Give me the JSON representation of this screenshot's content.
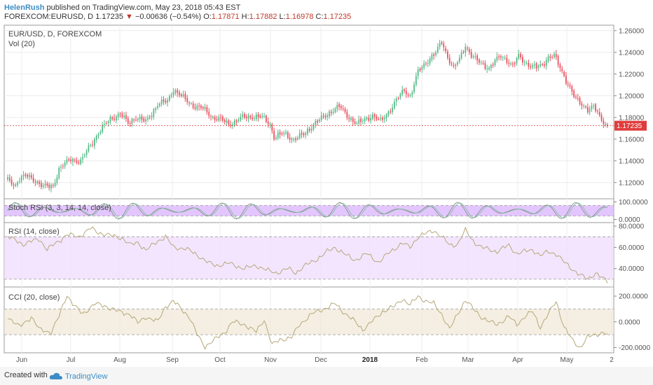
{
  "header": {
    "user": "HelenRush",
    "published_text": "published on TradingView.com, May 23, 2018 05:43 EST",
    "symbol": "FOREXCOM:EURUSD, D",
    "last": "1.17235",
    "change": "−0.00636 (−0.54%)",
    "open_label": "O:",
    "open": "1.17871",
    "high_label": "H:",
    "high": "1.17882",
    "low_label": "L:",
    "low": "1.16978",
    "close_label": "C:",
    "close": "1.17235"
  },
  "legend": {
    "main": "EUR/USD, D, FOREXCOM",
    "vol": "Vol (20)"
  },
  "colors": {
    "up": "#53b987",
    "down": "#eb4d5c",
    "price_line": "#e03c3c",
    "stoch_fill": "#d9b3ff",
    "rsi_fill": "#f0dcff",
    "cci_fill": "#f2e8d8",
    "line": "#b5a87a"
  },
  "footer": {
    "created_with": "Created with",
    "brand": "TradingView"
  },
  "chart_data": [
    {
      "type": "candlestick",
      "title": "EUR/USD, D, FOREXCOM",
      "x_ticks": [
        "Jun",
        "Jul",
        "Aug",
        "Sep",
        "Oct",
        "Nov",
        "Dec",
        "2018",
        "Feb",
        "Mar",
        "Apr",
        "May",
        "2"
      ],
      "y_ticks": [
        "1.26000",
        "1.24000",
        "1.22000",
        "1.20000",
        "1.18000",
        "1.16000",
        "1.14000",
        "1.12000"
      ],
      "ylim": [
        1.105,
        1.265
      ],
      "last_price_label": "1.17235",
      "last_price": 1.17235,
      "close_anchors": [
        [
          0,
          1.122
        ],
        [
          4,
          1.118
        ],
        [
          6,
          1.124
        ],
        [
          10,
          1.126
        ],
        [
          14,
          1.122
        ],
        [
          18,
          1.116
        ],
        [
          23,
          1.117
        ],
        [
          26,
          1.132
        ],
        [
          32,
          1.142
        ],
        [
          37,
          1.139
        ],
        [
          42,
          1.155
        ],
        [
          47,
          1.168
        ],
        [
          52,
          1.179
        ],
        [
          57,
          1.183
        ],
        [
          61,
          1.175
        ],
        [
          65,
          1.18
        ],
        [
          70,
          1.176
        ],
        [
          76,
          1.192
        ],
        [
          81,
          1.195
        ],
        [
          84,
          1.206
        ],
        [
          89,
          1.198
        ],
        [
          94,
          1.191
        ],
        [
          99,
          1.188
        ],
        [
          104,
          1.18
        ],
        [
          108,
          1.178
        ],
        [
          112,
          1.174
        ],
        [
          115,
          1.176
        ],
        [
          119,
          1.18
        ],
        [
          124,
          1.181
        ],
        [
          129,
          1.18
        ],
        [
          133,
          1.174
        ],
        [
          135,
          1.162
        ],
        [
          140,
          1.165
        ],
        [
          145,
          1.16
        ],
        [
          150,
          1.164
        ],
        [
          155,
          1.174
        ],
        [
          160,
          1.18
        ],
        [
          164,
          1.186
        ],
        [
          168,
          1.19
        ],
        [
          172,
          1.182
        ],
        [
          177,
          1.174
        ],
        [
          181,
          1.178
        ],
        [
          185,
          1.182
        ],
        [
          189,
          1.176
        ],
        [
          193,
          1.185
        ],
        [
          197,
          1.196
        ],
        [
          201,
          1.205
        ],
        [
          204,
          1.2
        ],
        [
          208,
          1.222
        ],
        [
          211,
          1.228
        ],
        [
          214,
          1.235
        ],
        [
          217,
          1.24
        ],
        [
          220,
          1.249
        ],
        [
          223,
          1.236
        ],
        [
          226,
          1.226
        ],
        [
          229,
          1.233
        ],
        [
          232,
          1.246
        ],
        [
          235,
          1.238
        ],
        [
          238,
          1.232
        ],
        [
          241,
          1.228
        ],
        [
          244,
          1.226
        ],
        [
          247,
          1.232
        ],
        [
          250,
          1.236
        ],
        [
          253,
          1.233
        ],
        [
          256,
          1.228
        ],
        [
          259,
          1.236
        ],
        [
          262,
          1.231
        ],
        [
          265,
          1.228
        ],
        [
          268,
          1.226
        ],
        [
          271,
          1.228
        ],
        [
          274,
          1.236
        ],
        [
          277,
          1.237
        ],
        [
          279,
          1.229
        ],
        [
          282,
          1.218
        ],
        [
          285,
          1.208
        ],
        [
          288,
          1.196
        ],
        [
          291,
          1.192
        ],
        [
          294,
          1.188
        ],
        [
          297,
          1.19
        ],
        [
          300,
          1.18
        ],
        [
          302,
          1.176
        ],
        [
          304,
          1.1727
        ]
      ]
    },
    {
      "type": "line",
      "title": "Stoch RSI (3, 3, 14, 14, close)",
      "y_ticks": [
        "100.0000",
        "0.0000"
      ],
      "ylim": [
        -10,
        110
      ],
      "band": [
        20,
        80
      ]
    },
    {
      "type": "line",
      "title": "RSI (14, close)",
      "y_ticks": [
        "80.0000",
        "60.0000",
        "40.0000"
      ],
      "ylim": [
        24,
        82
      ],
      "band": [
        30,
        70
      ],
      "anchors": [
        [
          0,
          70
        ],
        [
          8,
          63
        ],
        [
          16,
          68
        ],
        [
          20,
          58
        ],
        [
          26,
          66
        ],
        [
          30,
          72
        ],
        [
          36,
          70
        ],
        [
          42,
          78
        ],
        [
          46,
          74
        ],
        [
          52,
          71
        ],
        [
          58,
          69
        ],
        [
          62,
          62
        ],
        [
          66,
          65
        ],
        [
          70,
          57
        ],
        [
          76,
          66
        ],
        [
          80,
          70
        ],
        [
          84,
          60
        ],
        [
          90,
          59
        ],
        [
          96,
          53
        ],
        [
          102,
          45
        ],
        [
          106,
          43
        ],
        [
          112,
          45
        ],
        [
          120,
          40
        ],
        [
          126,
          43
        ],
        [
          132,
          38
        ],
        [
          136,
          36
        ],
        [
          142,
          40
        ],
        [
          146,
          36
        ],
        [
          150,
          42
        ],
        [
          156,
          48
        ],
        [
          162,
          56
        ],
        [
          166,
          60
        ],
        [
          172,
          52
        ],
        [
          176,
          48
        ],
        [
          182,
          54
        ],
        [
          188,
          46
        ],
        [
          194,
          56
        ],
        [
          200,
          64
        ],
        [
          204,
          60
        ],
        [
          208,
          70
        ],
        [
          212,
          73
        ],
        [
          216,
          76
        ],
        [
          220,
          70
        ],
        [
          224,
          62
        ],
        [
          228,
          63
        ],
        [
          232,
          76
        ],
        [
          236,
          66
        ],
        [
          240,
          60
        ],
        [
          244,
          58
        ],
        [
          248,
          56
        ],
        [
          254,
          62
        ],
        [
          258,
          54
        ],
        [
          262,
          56
        ],
        [
          266,
          58
        ],
        [
          270,
          52
        ],
        [
          274,
          56
        ],
        [
          278,
          54
        ],
        [
          282,
          46
        ],
        [
          286,
          40
        ],
        [
          290,
          34
        ],
        [
          294,
          30
        ],
        [
          298,
          36
        ],
        [
          302,
          30
        ],
        [
          304,
          28
        ]
      ]
    },
    {
      "type": "line",
      "title": "CCI (20, close)",
      "y_ticks": [
        "200.0000",
        "0.0000",
        "-200.0000"
      ],
      "ylim": [
        -230,
        260
      ],
      "band": [
        -100,
        100
      ],
      "anchors": [
        [
          0,
          40
        ],
        [
          6,
          -40
        ],
        [
          12,
          40
        ],
        [
          16,
          -60
        ],
        [
          22,
          -80
        ],
        [
          26,
          40
        ],
        [
          30,
          210
        ],
        [
          34,
          120
        ],
        [
          38,
          60
        ],
        [
          44,
          140
        ],
        [
          50,
          120
        ],
        [
          56,
          80
        ],
        [
          62,
          60
        ],
        [
          66,
          -10
        ],
        [
          70,
          40
        ],
        [
          76,
          0
        ],
        [
          80,
          120
        ],
        [
          84,
          160
        ],
        [
          88,
          100
        ],
        [
          92,
          40
        ],
        [
          96,
          -100
        ],
        [
          100,
          -190
        ],
        [
          104,
          -150
        ],
        [
          110,
          -80
        ],
        [
          114,
          0
        ],
        [
          120,
          -20
        ],
        [
          126,
          -80
        ],
        [
          130,
          20
        ],
        [
          134,
          -180
        ],
        [
          138,
          -140
        ],
        [
          144,
          -120
        ],
        [
          148,
          -20
        ],
        [
          154,
          60
        ],
        [
          160,
          100
        ],
        [
          166,
          140
        ],
        [
          170,
          80
        ],
        [
          176,
          0
        ],
        [
          180,
          -60
        ],
        [
          186,
          20
        ],
        [
          190,
          80
        ],
        [
          196,
          120
        ],
        [
          200,
          180
        ],
        [
          204,
          130
        ],
        [
          208,
          200
        ],
        [
          212,
          160
        ],
        [
          216,
          140
        ],
        [
          220,
          60
        ],
        [
          224,
          -60
        ],
        [
          228,
          60
        ],
        [
          232,
          170
        ],
        [
          236,
          100
        ],
        [
          240,
          40
        ],
        [
          244,
          0
        ],
        [
          248,
          -20
        ],
        [
          254,
          40
        ],
        [
          258,
          -20
        ],
        [
          262,
          40
        ],
        [
          266,
          80
        ],
        [
          270,
          -40
        ],
        [
          274,
          60
        ],
        [
          278,
          160
        ],
        [
          282,
          -40
        ],
        [
          286,
          -140
        ],
        [
          290,
          -200
        ],
        [
          294,
          -120
        ],
        [
          298,
          -100
        ],
        [
          302,
          -80
        ],
        [
          304,
          -100
        ]
      ]
    }
  ]
}
